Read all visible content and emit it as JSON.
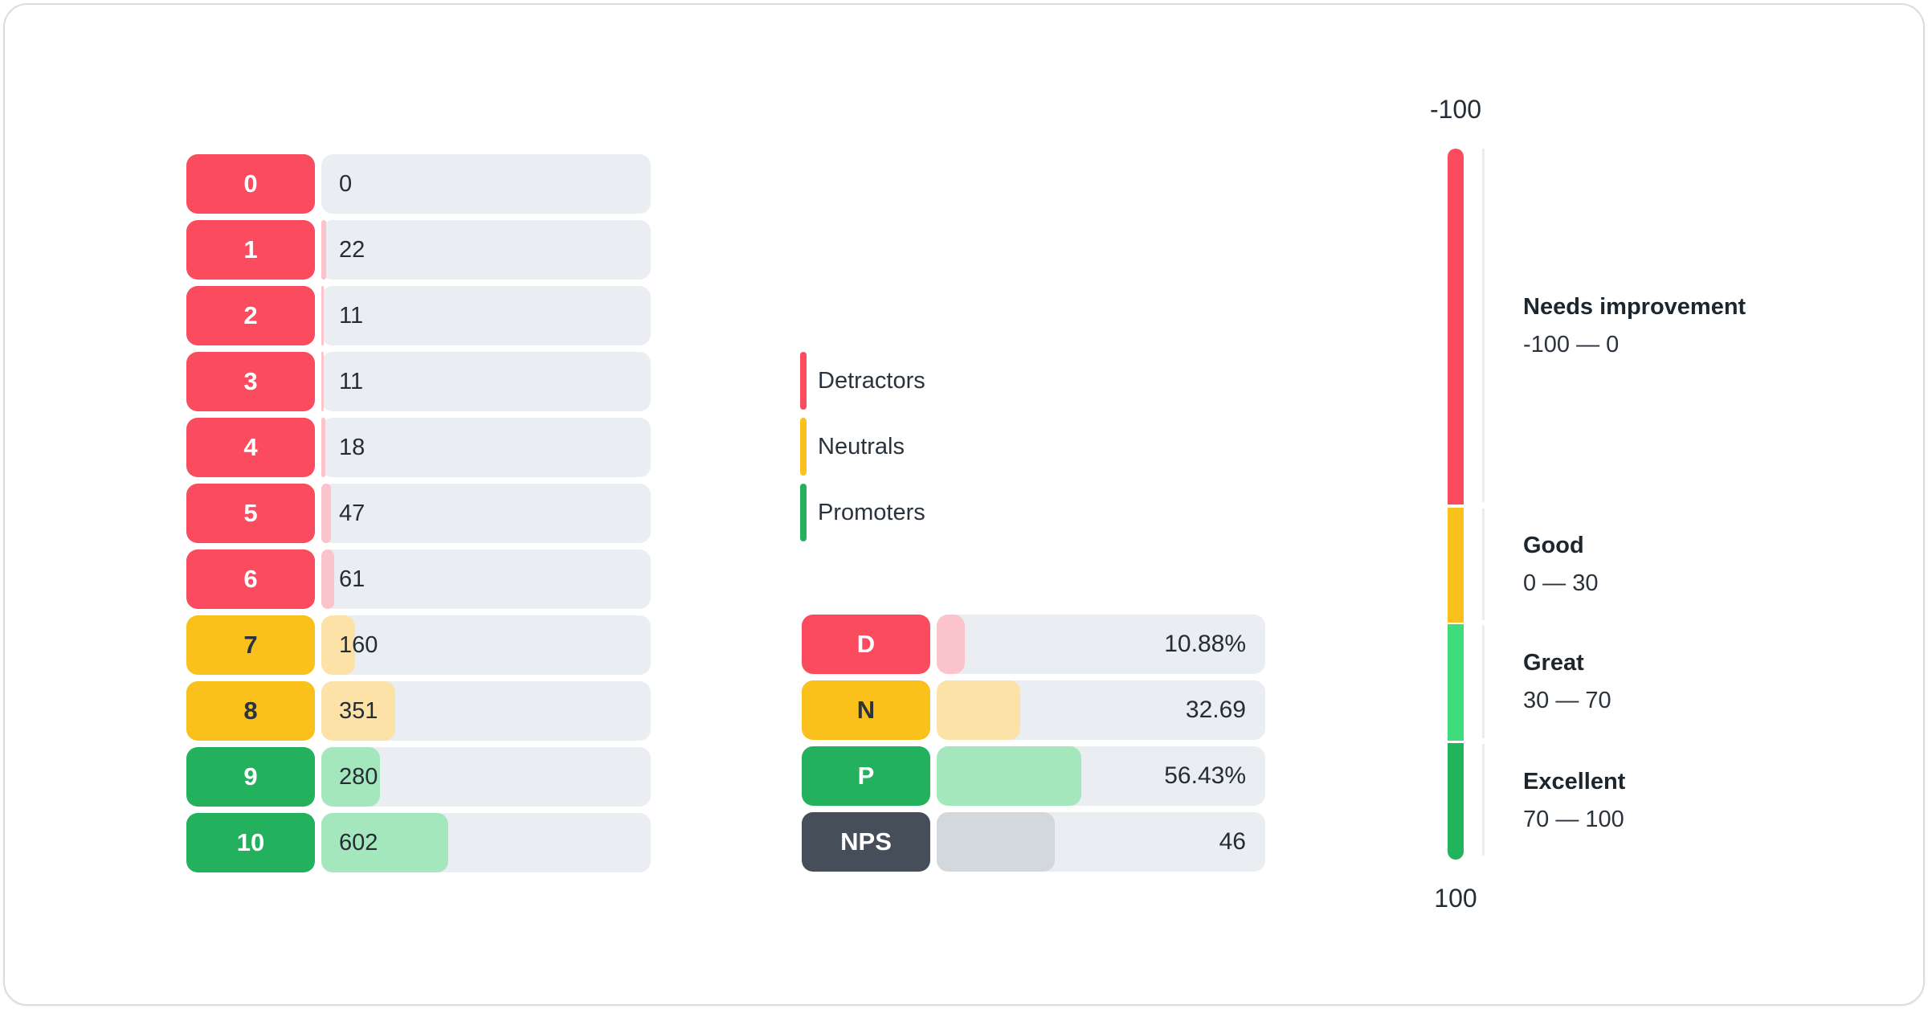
{
  "colors": {
    "detractor": "#FA4B5F",
    "detractor-light": "#FBC3CB",
    "neutral": "#FAC01B",
    "neutral-light": "#FCE2A6",
    "promoter": "#23B15D",
    "promoter-light": "#A5E7BD",
    "nps": "#454E59",
    "nps-light": "#D3D8DC",
    "track": "#EAEDF1",
    "gauge-great": "#3EDC7D",
    "gauge-excellent": "#22B45C",
    "axis": "#E9EDEE",
    "card-border": "#D8DDE2"
  },
  "legend": {
    "items": [
      {
        "label": "Detractors",
        "key": "detractor"
      },
      {
        "label": "Neutrals",
        "key": "neutral"
      },
      {
        "label": "Promoters",
        "key": "promoter"
      }
    ]
  },
  "chart_data": [
    {
      "id": "score-distribution",
      "type": "bar",
      "orientation": "horizontal",
      "categories": [
        "0",
        "1",
        "2",
        "3",
        "4",
        "5",
        "6",
        "7",
        "8",
        "9",
        "10"
      ],
      "values": [
        0,
        22,
        11,
        11,
        18,
        47,
        61,
        160,
        351,
        280,
        602
      ],
      "groups": [
        "detractor",
        "detractor",
        "detractor",
        "detractor",
        "detractor",
        "detractor",
        "detractor",
        "neutral",
        "neutral",
        "promoter",
        "promoter"
      ]
    },
    {
      "id": "nps-summary",
      "type": "bar",
      "orientation": "horizontal",
      "categories": [
        "D",
        "N",
        "P",
        "NPS"
      ],
      "values": [
        10.88,
        32.69,
        56.43,
        46
      ],
      "value_labels": [
        "10.88%",
        "32.69",
        "56.43%",
        "46"
      ],
      "groups": [
        "detractor",
        "neutral",
        "promoter",
        "nps"
      ]
    },
    {
      "id": "nps-gauge",
      "type": "gauge",
      "min": -100,
      "max": 100,
      "top_label": "-100",
      "bottom_label": "100",
      "zones": [
        {
          "title": "Needs improvement",
          "range": "-100 — 0",
          "key": "detractor"
        },
        {
          "title": "Good",
          "range": "0 — 30",
          "key": "neutral"
        },
        {
          "title": "Great",
          "range": "30 — 70",
          "key": "great"
        },
        {
          "title": "Excellent",
          "range": "70 — 100",
          "key": "excellent"
        }
      ]
    }
  ]
}
